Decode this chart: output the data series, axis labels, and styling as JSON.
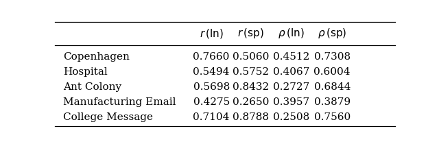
{
  "col_headers": [
    [
      "$r$",
      " (ln)"
    ],
    [
      "$r$",
      " (sp)"
    ],
    [
      "$\\rho$",
      " (ln)"
    ],
    [
      "$\\rho$",
      " (sp)"
    ]
  ],
  "row_labels": [
    "Copenhagen",
    "Hospital",
    "Ant Colony",
    "Manufacturing Email",
    "College Message"
  ],
  "data": [
    [
      0.766,
      0.506,
      0.4512,
      0.7308
    ],
    [
      0.5494,
      0.5752,
      0.4067,
      0.6004
    ],
    [
      0.5698,
      0.8432,
      0.2727,
      0.6844
    ],
    [
      0.4275,
      0.265,
      0.3957,
      0.3879
    ],
    [
      0.7104,
      0.8788,
      0.2508,
      0.756
    ]
  ],
  "background_color": "#ffffff",
  "text_color": "#000000",
  "fontsize": 11
}
